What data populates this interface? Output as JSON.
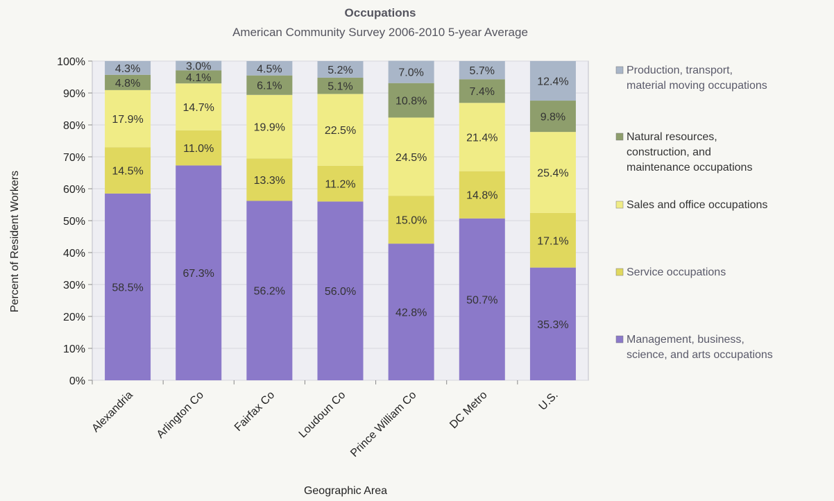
{
  "chart_data": {
    "type": "bar",
    "stacked": true,
    "title": "Occupations",
    "subtitle": "American Community Survey 2006-2010 5-year Average",
    "xlabel": "Geographic Area",
    "ylabel": "Percent of Resident Workers",
    "ylim": [
      0,
      100
    ],
    "yticks": [
      "0%",
      "10%",
      "20%",
      "30%",
      "40%",
      "50%",
      "60%",
      "70%",
      "80%",
      "90%",
      "100%"
    ],
    "categories": [
      "Alexandria",
      "Arlington Co",
      "Fairfax Co",
      "Loudoun Co",
      "Prince William Co",
      "DC Metro",
      "U.S."
    ],
    "legend_position": "right",
    "series": [
      {
        "name": "Management, business, science, and arts occupations",
        "legend_lines": [
          "Management, business,",
          "science, and arts occupations"
        ],
        "color": "#8b79c9",
        "values": [
          58.5,
          67.3,
          56.2,
          56.0,
          42.8,
          50.7,
          35.3
        ],
        "labels": [
          "58.5%",
          "67.3%",
          "56.2%",
          "56.0%",
          "42.8%",
          "50.7%",
          "35.3%"
        ]
      },
      {
        "name": "Service occupations",
        "legend_lines": [
          "Service occupations"
        ],
        "color": "#e0d85e",
        "values": [
          14.5,
          11.0,
          13.3,
          11.2,
          15.0,
          14.8,
          17.1
        ],
        "labels": [
          "14.5%",
          "11.0%",
          "13.3%",
          "11.2%",
          "15.0%",
          "14.8%",
          "17.1%"
        ]
      },
      {
        "name": "Sales and office occupations",
        "legend_lines": [
          "Sales and office occupations"
        ],
        "color": "#f0ec86",
        "values": [
          17.9,
          14.7,
          19.9,
          22.5,
          24.5,
          21.4,
          25.4
        ],
        "labels": [
          "17.9%",
          "14.7%",
          "19.9%",
          "22.5%",
          "24.5%",
          "21.4%",
          "25.4%"
        ]
      },
      {
        "name": "Natural resources, construction, and maintenance occupations",
        "legend_lines": [
          "Natural resources,",
          "construction, and",
          "maintenance occupations"
        ],
        "color": "#8e9e6c",
        "values": [
          4.8,
          4.1,
          6.1,
          5.1,
          10.8,
          7.4,
          9.8
        ],
        "labels": [
          "4.8%",
          "4.1%",
          "6.1%",
          "5.1%",
          "10.8%",
          "7.4%",
          "9.8%"
        ]
      },
      {
        "name": "Production, transport, material moving occupations",
        "legend_lines": [
          "Production, transport,",
          "material moving occupations"
        ],
        "color": "#a9b6c8",
        "values": [
          4.3,
          3.0,
          4.5,
          5.2,
          7.0,
          5.7,
          12.4
        ],
        "labels": [
          "4.3%",
          "3.0%",
          "4.5%",
          "5.2%",
          "7.0%",
          "5.7%",
          "12.4%"
        ]
      }
    ],
    "colors": {
      "management": "#8b79c9",
      "service": "#e0d85e",
      "sales": "#f0ec86",
      "natural": "#8e9e6c",
      "production": "#a9b6c8"
    }
  }
}
